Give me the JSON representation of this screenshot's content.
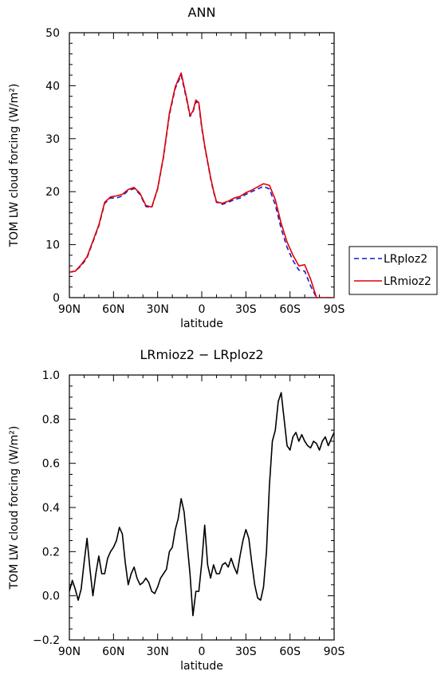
{
  "chart_data": [
    {
      "type": "line",
      "title": "ANN",
      "xlabel": "latitude",
      "ylabel": "TOM LW cloud forcing (W/m²)",
      "xlim": [
        -90,
        90
      ],
      "ylim": [
        0,
        50
      ],
      "x_ticks": [
        "90N",
        "60N",
        "30N",
        "0",
        "30S",
        "60S",
        "90S"
      ],
      "y_ticks": [
        "0",
        "10",
        "20",
        "30",
        "40",
        "50"
      ],
      "legend": "right",
      "legend_entries": [
        "LRploz2",
        "LRmioz2"
      ],
      "series": [
        {
          "name": "LRploz2",
          "color": "#1a1acc",
          "dash": true,
          "x": [
            -90,
            -86,
            -82,
            -78,
            -74,
            -70,
            -66,
            -62,
            -58,
            -54,
            -50,
            -46,
            -42,
            -38,
            -34,
            -30,
            -26,
            -22,
            -18,
            -14,
            -10,
            -8,
            -6,
            -4,
            -2,
            0,
            2,
            4,
            6,
            8,
            10,
            14,
            18,
            22,
            26,
            30,
            34,
            38,
            42,
            46,
            50,
            54,
            58,
            62,
            66,
            70,
            74,
            78,
            82,
            86,
            90
          ],
          "y": [
            4.8,
            5.0,
            6.0,
            7.5,
            10.5,
            13.5,
            17.8,
            18.8,
            18.8,
            19.2,
            20.2,
            20.6,
            19.5,
            17.2,
            17.0,
            20.5,
            26.5,
            34.5,
            39.5,
            42.0,
            37.0,
            34.2,
            35.0,
            37.0,
            36.5,
            32.0,
            28.5,
            25.5,
            22.5,
            20.0,
            18.0,
            17.6,
            18.0,
            18.5,
            18.8,
            19.5,
            20.0,
            20.5,
            21.0,
            20.5,
            17.5,
            13.0,
            9.5,
            7.0,
            5.2,
            5.0,
            2.2,
            0,
            0,
            0,
            0
          ]
        },
        {
          "name": "LRmioz2",
          "color": "#e00000",
          "dash": false,
          "x": [
            -90,
            -86,
            -82,
            -78,
            -74,
            -70,
            -66,
            -62,
            -58,
            -54,
            -50,
            -46,
            -42,
            -38,
            -34,
            -30,
            -26,
            -22,
            -18,
            -14,
            -10,
            -8,
            -6,
            -4,
            -2,
            0,
            2,
            4,
            6,
            8,
            10,
            14,
            18,
            22,
            26,
            30,
            34,
            38,
            42,
            46,
            50,
            54,
            58,
            62,
            66,
            70,
            74,
            78,
            82,
            86,
            90
          ],
          "y": [
            4.8,
            5.0,
            6.2,
            7.7,
            10.7,
            13.7,
            18.0,
            19.0,
            19.2,
            19.5,
            20.4,
            20.8,
            19.7,
            17.4,
            17.1,
            20.6,
            26.7,
            34.8,
            39.8,
            42.4,
            37.3,
            34.4,
            35.2,
            37.3,
            36.8,
            32.3,
            28.7,
            25.7,
            22.7,
            20.2,
            18.1,
            17.8,
            18.2,
            18.8,
            19.1,
            19.8,
            20.3,
            20.9,
            21.5,
            21.2,
            18.5,
            14.0,
            10.5,
            8.0,
            6.0,
            6.2,
            3.5,
            0,
            0,
            0,
            0
          ]
        }
      ]
    },
    {
      "type": "line",
      "title": "LRmioz2 − LRploz2",
      "xlabel": "latitude",
      "ylabel": "TOM LW cloud forcing (W/m²)",
      "xlim": [
        -90,
        90
      ],
      "ylim": [
        -0.2,
        1.0
      ],
      "x_ticks": [
        "90N",
        "60N",
        "30N",
        "0",
        "30S",
        "60S",
        "90S"
      ],
      "y_ticks": [
        "−0.2",
        "0.0",
        "0.2",
        "0.4",
        "0.6",
        "0.8",
        "1.0"
      ],
      "series": [
        {
          "color": "#000000",
          "dash": false,
          "x": [
            -90,
            -88,
            -86,
            -84,
            -82,
            -80,
            -78,
            -76,
            -74,
            -72,
            -70,
            -68,
            -66,
            -64,
            -62,
            -60,
            -58,
            -56,
            -54,
            -52,
            -50,
            -48,
            -46,
            -44,
            -42,
            -40,
            -38,
            -36,
            -34,
            -32,
            -30,
            -28,
            -26,
            -24,
            -22,
            -20,
            -18,
            -16,
            -14,
            -12,
            -10,
            -8,
            -6,
            -4,
            -2,
            0,
            2,
            4,
            6,
            8,
            10,
            12,
            14,
            16,
            18,
            20,
            22,
            24,
            26,
            28,
            30,
            32,
            34,
            36,
            38,
            40,
            42,
            44,
            46,
            48,
            50,
            52,
            54,
            56,
            58,
            60,
            62,
            64,
            66,
            68,
            70,
            72,
            74,
            76,
            78,
            80,
            82,
            84,
            86,
            88,
            90
          ],
          "y": [
            0.02,
            0.07,
            0.03,
            -0.02,
            0.03,
            0.15,
            0.26,
            0.12,
            0.0,
            0.1,
            0.18,
            0.1,
            0.1,
            0.17,
            0.2,
            0.22,
            0.25,
            0.31,
            0.28,
            0.15,
            0.05,
            0.1,
            0.13,
            0.08,
            0.05,
            0.06,
            0.08,
            0.06,
            0.02,
            0.01,
            0.04,
            0.08,
            0.1,
            0.12,
            0.2,
            0.22,
            0.3,
            0.35,
            0.44,
            0.38,
            0.24,
            0.1,
            -0.09,
            0.02,
            0.02,
            0.15,
            0.32,
            0.14,
            0.08,
            0.14,
            0.1,
            0.1,
            0.14,
            0.15,
            0.13,
            0.17,
            0.13,
            0.1,
            0.18,
            0.25,
            0.3,
            0.26,
            0.15,
            0.05,
            -0.01,
            -0.02,
            0.04,
            0.2,
            0.5,
            0.7,
            0.75,
            0.88,
            0.92,
            0.8,
            0.68,
            0.66,
            0.72,
            0.74,
            0.7,
            0.73,
            0.7,
            0.68,
            0.67,
            0.7,
            0.69,
            0.66,
            0.7,
            0.72,
            0.68,
            0.71,
            0.74
          ]
        }
      ]
    }
  ]
}
